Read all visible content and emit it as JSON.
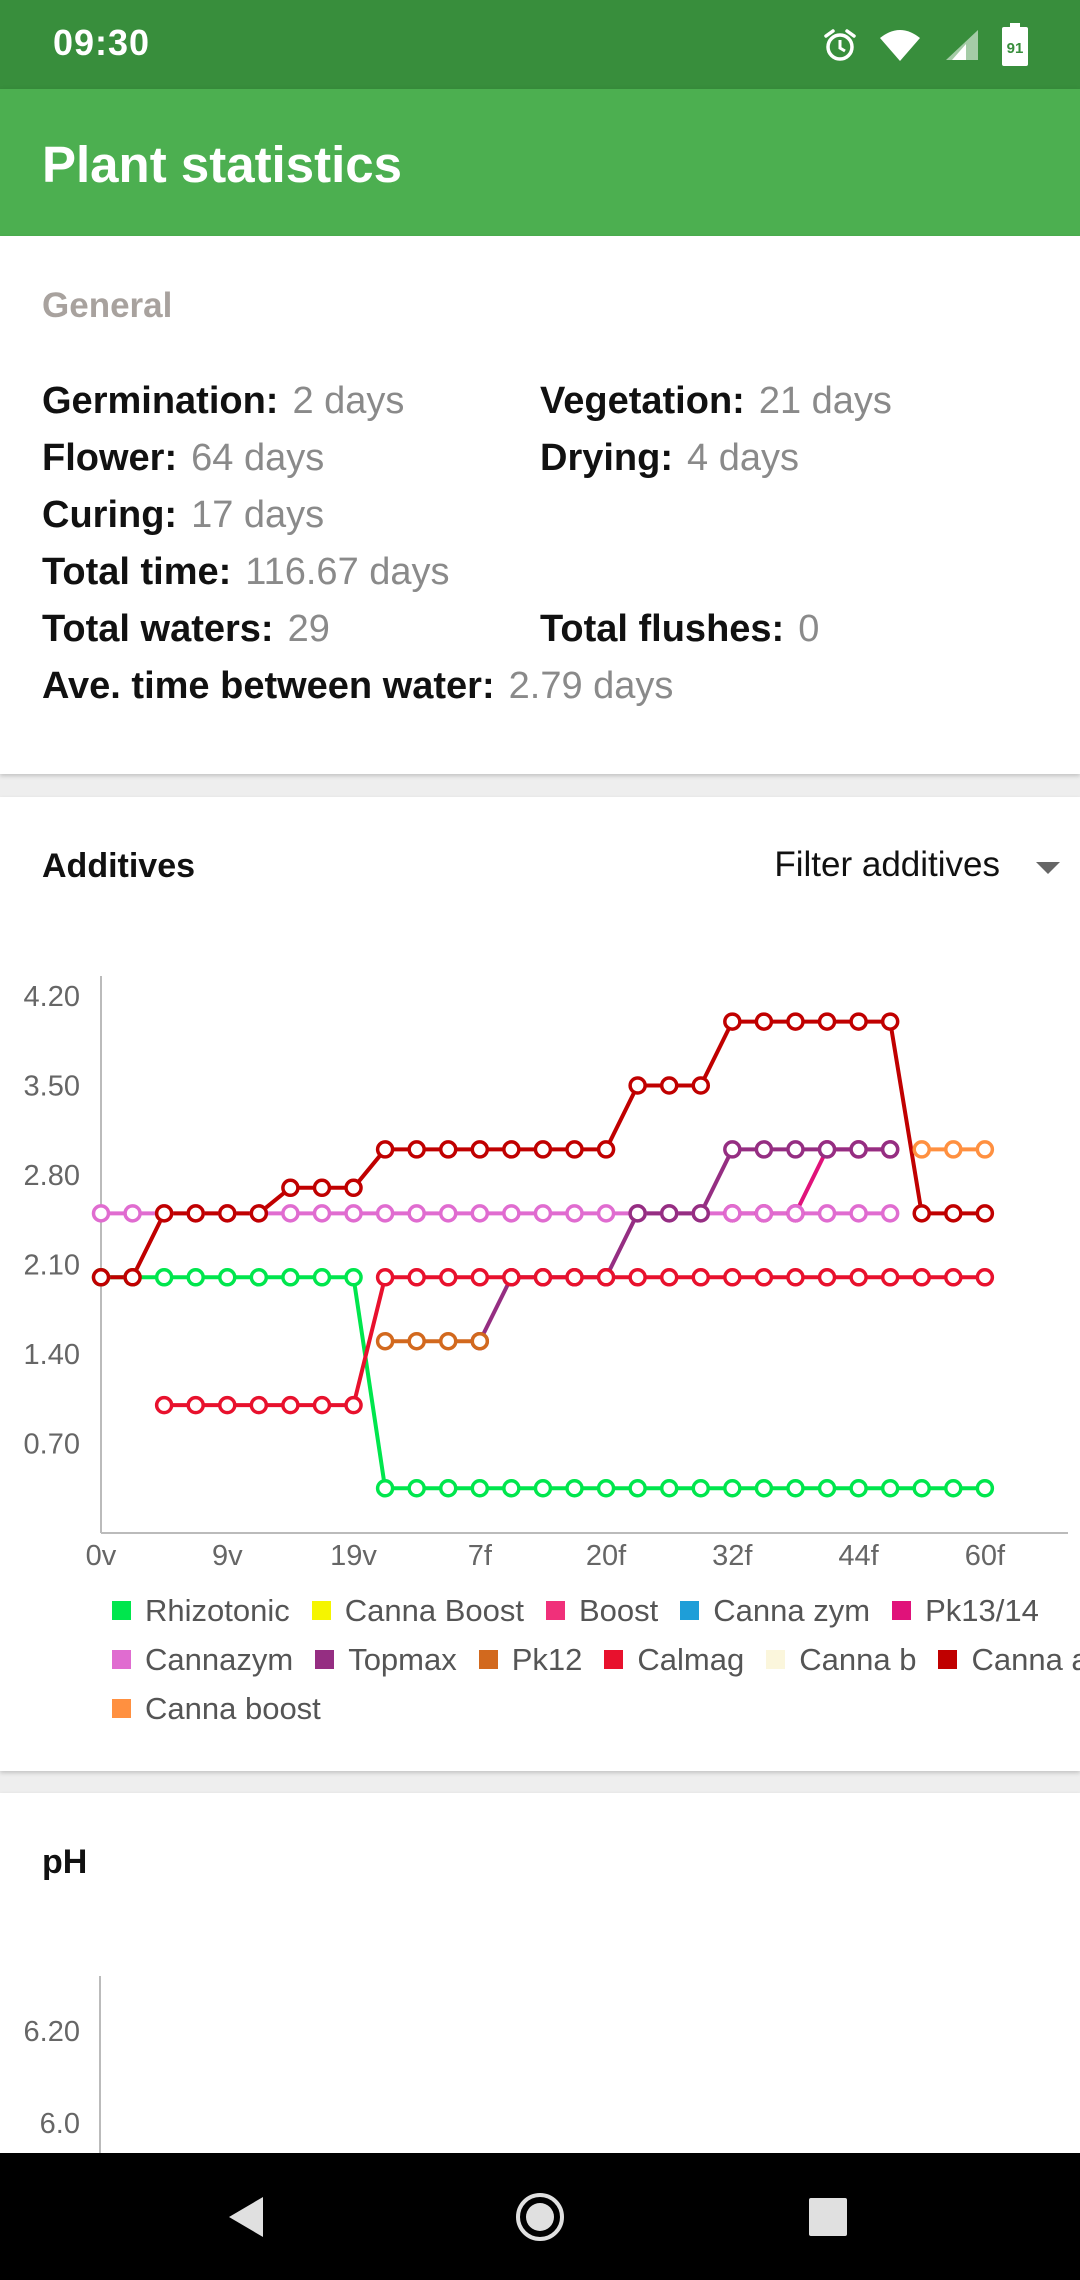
{
  "status_bar": {
    "time": "09:30",
    "battery": "91",
    "icons": [
      "alarm-icon",
      "wifi-icon",
      "signal-icon",
      "battery-icon"
    ]
  },
  "app_bar": {
    "title": "Plant statistics"
  },
  "general": {
    "section_label": "General",
    "germination": {
      "label": "Germination:",
      "value": "2 days"
    },
    "vegetation": {
      "label": "Vegetation:",
      "value": "21 days"
    },
    "flower": {
      "label": "Flower:",
      "value": "64 days"
    },
    "drying": {
      "label": "Drying:",
      "value": "4 days"
    },
    "curing": {
      "label": "Curing:",
      "value": "17 days"
    },
    "total_time": {
      "label": "Total time:",
      "value": "116.67 days"
    },
    "total_waters": {
      "label": "Total waters:",
      "value": "29"
    },
    "total_flushes": {
      "label": "Total flushes:",
      "value": "0"
    },
    "ave_time": {
      "label": "Ave. time between water:",
      "value": "2.79 days"
    }
  },
  "additives": {
    "title": "Additives",
    "filter_label": "Filter additives"
  },
  "ph": {
    "title": "pH"
  },
  "ph_chart": {
    "y_ticks": [
      "6.20",
      "6.0"
    ]
  },
  "chart_data": {
    "type": "line",
    "title": "",
    "xlabel": "",
    "ylabel": "",
    "ylim": [
      0,
      4.2
    ],
    "xlim": [
      0,
      60
    ],
    "y_ticks": [
      "0.70",
      "1.40",
      "2.10",
      "2.80",
      "3.50",
      "4.20"
    ],
    "x_ticks": [
      {
        "x": 0,
        "label": "0v"
      },
      {
        "x": 8,
        "label": "9v"
      },
      {
        "x": 16,
        "label": "19v"
      },
      {
        "x": 24,
        "label": "7f"
      },
      {
        "x": 32,
        "label": "20f"
      },
      {
        "x": 40,
        "label": "32f"
      },
      {
        "x": 48,
        "label": "44f"
      },
      {
        "x": 56,
        "label": "60f"
      }
    ],
    "legend_placement": "bottom",
    "series": [
      {
        "name": "Rhizotonic",
        "color": "#00e64d",
        "points": [
          [
            0,
            2.0
          ],
          [
            2,
            2.0
          ],
          [
            4,
            2.0
          ],
          [
            6,
            2.0
          ],
          [
            8,
            2.0
          ],
          [
            10,
            2.0
          ],
          [
            12,
            2.0
          ],
          [
            14,
            2.0
          ],
          [
            16,
            2.0
          ],
          [
            18,
            0.35
          ],
          [
            20,
            0.35
          ],
          [
            22,
            0.35
          ],
          [
            24,
            0.35
          ],
          [
            26,
            0.35
          ],
          [
            28,
            0.35
          ],
          [
            30,
            0.35
          ],
          [
            32,
            0.35
          ],
          [
            34,
            0.35
          ],
          [
            36,
            0.35
          ],
          [
            38,
            0.35
          ],
          [
            40,
            0.35
          ],
          [
            42,
            0.35
          ],
          [
            44,
            0.35
          ],
          [
            46,
            0.35
          ],
          [
            48,
            0.35
          ],
          [
            50,
            0.35
          ],
          [
            52,
            0.35
          ],
          [
            54,
            0.35
          ],
          [
            56,
            0.35
          ]
        ]
      },
      {
        "name": "Canna Boost",
        "color": "#f5f500",
        "points": []
      },
      {
        "name": "Boost",
        "color": "#f0307a",
        "points": []
      },
      {
        "name": "Canna zym",
        "color": "#1e9ed8",
        "points": []
      },
      {
        "name": "Pk13/14",
        "color": "#e0127a",
        "points": [
          [
            40,
            2.5
          ],
          [
            42,
            2.5
          ],
          [
            44,
            2.5
          ],
          [
            46,
            3.0
          ],
          [
            48,
            3.0
          ],
          [
            50,
            3.0
          ]
        ]
      },
      {
        "name": "Cannazym",
        "color": "#e06cd0",
        "points": [
          [
            0,
            2.5
          ],
          [
            2,
            2.5
          ],
          [
            4,
            2.5
          ],
          [
            6,
            2.5
          ],
          [
            8,
            2.5
          ],
          [
            10,
            2.5
          ],
          [
            12,
            2.5
          ],
          [
            14,
            2.5
          ],
          [
            16,
            2.5
          ],
          [
            18,
            2.5
          ],
          [
            20,
            2.5
          ],
          [
            22,
            2.5
          ],
          [
            24,
            2.5
          ],
          [
            26,
            2.5
          ],
          [
            28,
            2.5
          ],
          [
            30,
            2.5
          ],
          [
            32,
            2.5
          ],
          [
            34,
            2.5
          ],
          [
            36,
            2.5
          ],
          [
            38,
            2.5
          ],
          [
            40,
            2.5
          ],
          [
            42,
            2.5
          ],
          [
            44,
            2.5
          ],
          [
            46,
            2.5
          ],
          [
            48,
            2.5
          ],
          [
            50,
            2.5
          ]
        ]
      },
      {
        "name": "Topmax",
        "color": "#952e82",
        "points": [
          [
            24,
            1.5
          ],
          [
            26,
            2.0
          ],
          [
            28,
            2.0
          ],
          [
            30,
            2.0
          ],
          [
            32,
            2.0
          ],
          [
            34,
            2.5
          ],
          [
            36,
            2.5
          ],
          [
            38,
            2.5
          ],
          [
            40,
            3.0
          ],
          [
            42,
            3.0
          ],
          [
            44,
            3.0
          ],
          [
            46,
            3.0
          ],
          [
            48,
            3.0
          ],
          [
            50,
            3.0
          ]
        ]
      },
      {
        "name": "Pk12",
        "color": "#d2691e",
        "points": [
          [
            18,
            1.5
          ],
          [
            20,
            1.5
          ],
          [
            22,
            1.5
          ],
          [
            24,
            1.5
          ]
        ]
      },
      {
        "name": "Calmag",
        "color": "#e8112d",
        "points": [
          [
            4,
            1.0
          ],
          [
            6,
            1.0
          ],
          [
            8,
            1.0
          ],
          [
            10,
            1.0
          ],
          [
            12,
            1.0
          ],
          [
            14,
            1.0
          ],
          [
            16,
            1.0
          ],
          [
            18,
            2.0
          ],
          [
            20,
            2.0
          ],
          [
            22,
            2.0
          ],
          [
            24,
            2.0
          ],
          [
            26,
            2.0
          ],
          [
            28,
            2.0
          ],
          [
            30,
            2.0
          ],
          [
            32,
            2.0
          ],
          [
            34,
            2.0
          ],
          [
            36,
            2.0
          ],
          [
            38,
            2.0
          ],
          [
            40,
            2.0
          ],
          [
            42,
            2.0
          ],
          [
            44,
            2.0
          ],
          [
            46,
            2.0
          ],
          [
            48,
            2.0
          ],
          [
            50,
            2.0
          ],
          [
            52,
            2.0
          ],
          [
            54,
            2.0
          ],
          [
            56,
            2.0
          ]
        ]
      },
      {
        "name": "Canna b",
        "color": "#fbf6dc",
        "points": []
      },
      {
        "name": "Canna a",
        "color": "#c00000",
        "points": [
          [
            0,
            2.0
          ],
          [
            2,
            2.0
          ],
          [
            4,
            2.5
          ],
          [
            6,
            2.5
          ],
          [
            8,
            2.5
          ],
          [
            10,
            2.5
          ],
          [
            12,
            2.7
          ],
          [
            14,
            2.7
          ],
          [
            16,
            2.7
          ],
          [
            18,
            3.0
          ],
          [
            20,
            3.0
          ],
          [
            22,
            3.0
          ],
          [
            24,
            3.0
          ],
          [
            26,
            3.0
          ],
          [
            28,
            3.0
          ],
          [
            30,
            3.0
          ],
          [
            32,
            3.0
          ],
          [
            34,
            3.5
          ],
          [
            36,
            3.5
          ],
          [
            38,
            3.5
          ],
          [
            40,
            4.0
          ],
          [
            42,
            4.0
          ],
          [
            44,
            4.0
          ],
          [
            46,
            4.0
          ],
          [
            48,
            4.0
          ],
          [
            50,
            4.0
          ],
          [
            52,
            2.5
          ],
          [
            54,
            2.5
          ],
          [
            56,
            2.5
          ]
        ]
      },
      {
        "name": "Canna boost",
        "color": "#ff9040",
        "points": [
          [
            52,
            3.0
          ],
          [
            54,
            3.0
          ],
          [
            56,
            3.0
          ]
        ]
      }
    ]
  }
}
